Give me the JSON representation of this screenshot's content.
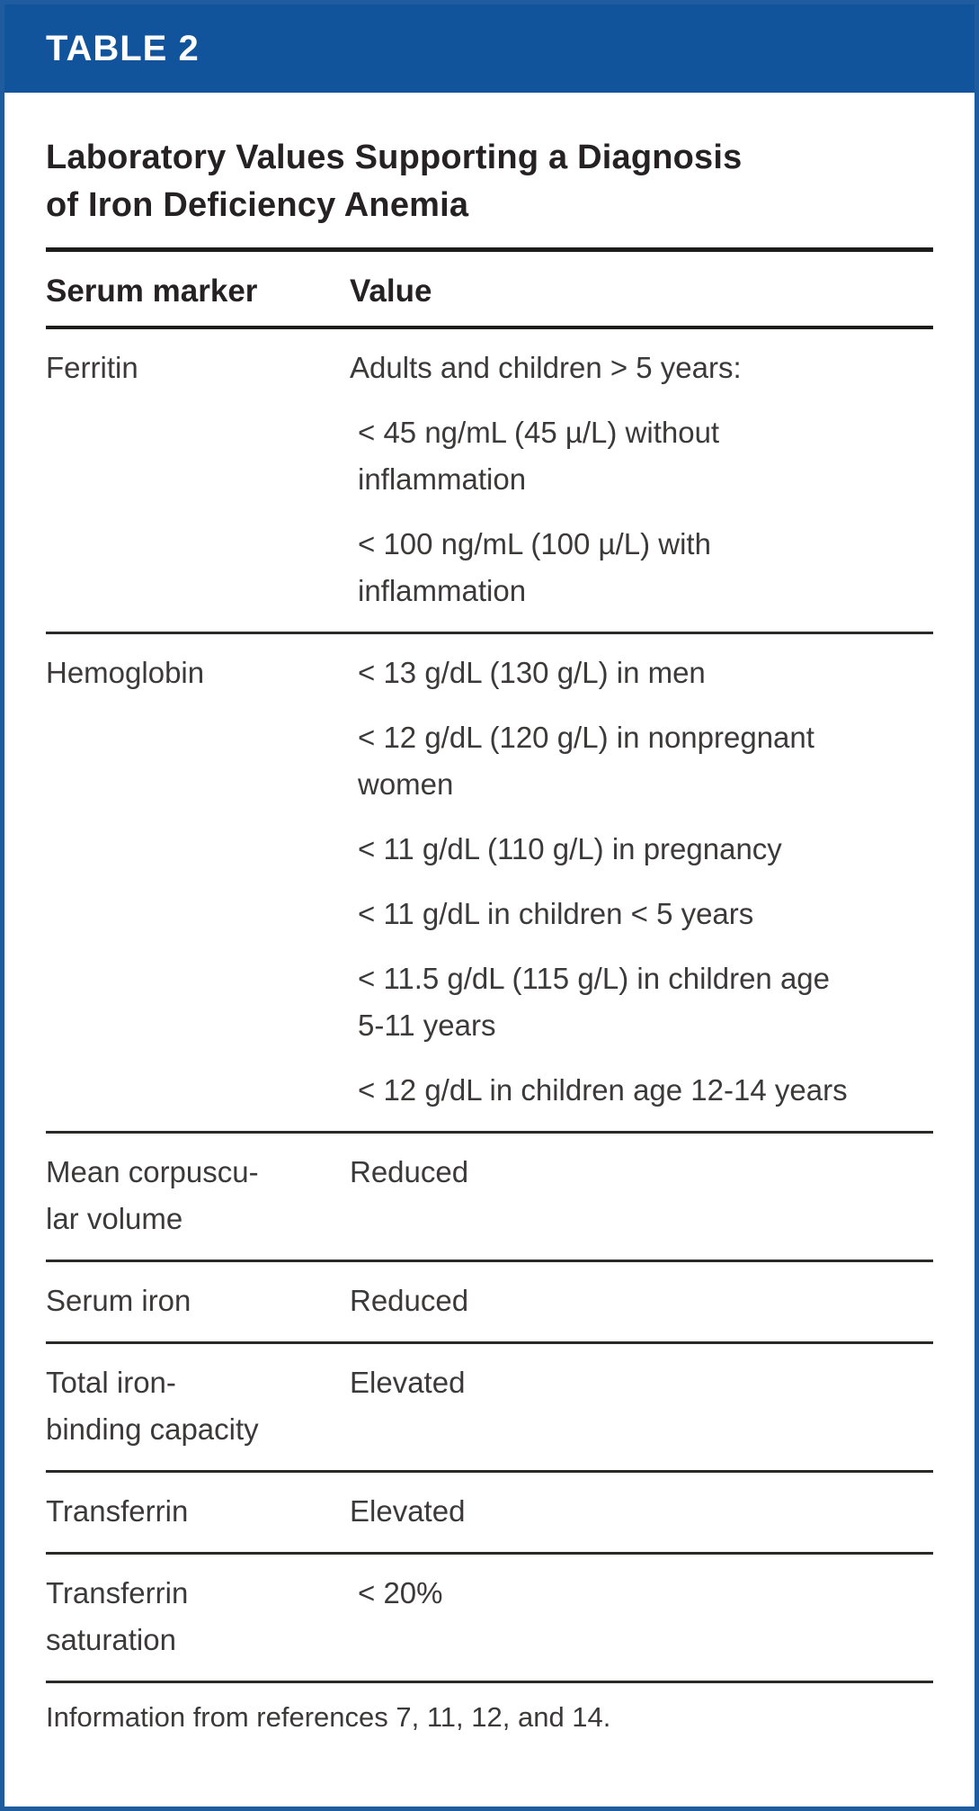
{
  "banner": {
    "label": "TABLE 2"
  },
  "title": "Laboratory Values Supporting a Diagnosis\nof Iron Deficiency Anemia",
  "columns": {
    "marker": "Serum marker",
    "value": "Value"
  },
  "rows": [
    {
      "marker": "Ferritin",
      "value_paragraphs": [
        "Adults and children > 5 years:",
        "< 45 ng/mL (45 µ/L) without\ninflammation",
        "< 100 ng/mL (100 µ/L) with\ninflammation"
      ]
    },
    {
      "marker": "Hemoglobin",
      "value_paragraphs": [
        "< 13 g/dL (130 g/L) in men",
        "< 12 g/dL (120 g/L) in nonpregnant\nwomen",
        "< 11 g/dL (110 g/L) in pregnancy",
        "< 11 g/dL in children < 5 years",
        "< 11.5 g/dL (115 g/L) in children age\n5-11 years",
        "< 12 g/dL in children age 12-14 years"
      ]
    },
    {
      "marker": "Mean corpuscu-\nlar volume",
      "value_paragraphs": [
        "Reduced"
      ]
    },
    {
      "marker": "Serum iron",
      "value_paragraphs": [
        "Reduced"
      ]
    },
    {
      "marker": "Total iron-\nbinding capacity",
      "value_paragraphs": [
        "Elevated"
      ]
    },
    {
      "marker": "Transferrin",
      "value_paragraphs": [
        "Elevated"
      ]
    },
    {
      "marker": "Transferrin\nsaturation",
      "value_paragraphs": [
        "< 20%"
      ]
    }
  ],
  "footer": {
    "note": "Information from references 7, 11, 12, and 14."
  },
  "colors": {
    "banner_bg": "#11549b",
    "border": "#1e5b9f",
    "banner_text": "#ffffff",
    "heading": "#262123",
    "text": "#3c3939",
    "rule_dark": "#1d1d1b",
    "rule": "#2a2a28",
    "bg": "#ffffff"
  }
}
